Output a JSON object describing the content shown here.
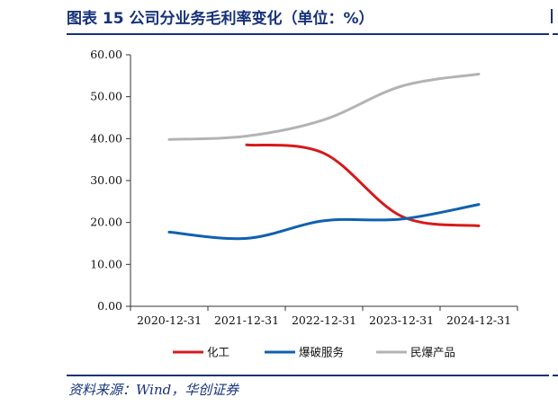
{
  "figure": {
    "title": "图表 15  公司分业务毛利率变化（单位：%）",
    "source": "资料来源：Wind，华创证券"
  },
  "chart_data": {
    "type": "line",
    "title": "",
    "xlabel": "",
    "ylabel": "",
    "categories": [
      "2020-12-31",
      "2021-12-31",
      "2022-12-31",
      "2023-12-31",
      "2024-12-31"
    ],
    "y_ticks": [
      "0.00",
      "10.00",
      "20.00",
      "30.00",
      "40.00",
      "50.00",
      "60.00"
    ],
    "ylim": [
      0,
      60
    ],
    "grid": false,
    "legend_position": "bottom",
    "series": [
      {
        "name": "化工",
        "color": "#d7191c",
        "values": [
          null,
          38.5,
          36.5,
          21.5,
          19.2
        ]
      },
      {
        "name": "爆破服务",
        "color": "#1060b0",
        "values": [
          17.7,
          16.2,
          20.4,
          20.8,
          24.3
        ]
      },
      {
        "name": "民爆产品",
        "color": "#b3b3b3",
        "values": [
          39.8,
          40.6,
          44.5,
          52.5,
          55.4
        ]
      }
    ]
  }
}
